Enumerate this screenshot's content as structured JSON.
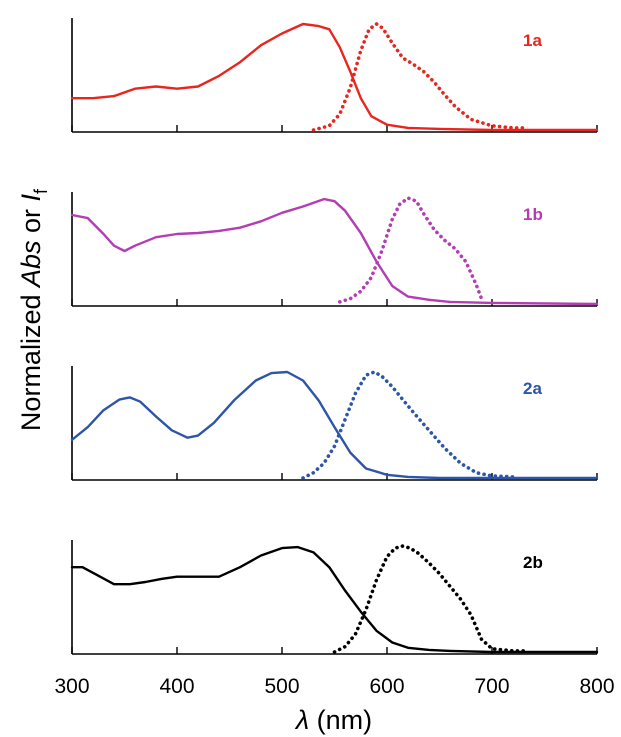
{
  "chart_data": {
    "type": "line",
    "xlabel": {
      "symbol": "λ",
      "unit": " (nm)"
    },
    "ylabel": {
      "prefix": "Normalized ",
      "abs": "Abs",
      "middle": " or ",
      "i": "I",
      "sub": "f"
    },
    "xlim": [
      300,
      800
    ],
    "xticks": [
      300,
      400,
      500,
      600,
      700,
      800
    ],
    "ylim": [
      0,
      1
    ],
    "grid": false,
    "panels": [
      {
        "label": "1a",
        "color": "#e8261f",
        "series": [
          {
            "kind": "absorption",
            "x": [
              300,
              320,
              340,
              360,
              380,
              400,
              420,
              440,
              460,
              480,
              500,
              520,
              535,
              545,
              555,
              565,
              575,
              585,
              600,
              620,
              650,
              700,
              800
            ],
            "y": [
              0.3,
              0.3,
              0.32,
              0.39,
              0.41,
              0.39,
              0.41,
              0.51,
              0.64,
              0.8,
              0.91,
              1.0,
              0.98,
              0.95,
              0.78,
              0.55,
              0.3,
              0.13,
              0.05,
              0.02,
              0.01,
              0.0,
              0.0
            ]
          },
          {
            "kind": "emission",
            "x": [
              530,
              545,
              555,
              565,
              575,
              583,
              590,
              596,
              605,
              615,
              625,
              635,
              645,
              655,
              665,
              680,
              700,
              720,
              730
            ],
            "y": [
              0.0,
              0.04,
              0.15,
              0.4,
              0.75,
              0.95,
              1.0,
              0.96,
              0.82,
              0.68,
              0.62,
              0.55,
              0.45,
              0.33,
              0.22,
              0.1,
              0.04,
              0.02,
              0.02
            ]
          }
        ]
      },
      {
        "label": "1b",
        "color": "#b43cb4",
        "series": [
          {
            "kind": "absorption",
            "x": [
              300,
              315,
              330,
              340,
              350,
              360,
              380,
              400,
              420,
              440,
              460,
              480,
              500,
              520,
              540,
              550,
              560,
              575,
              590,
              605,
              620,
              640,
              660,
              700,
              800
            ],
            "y": [
              0.84,
              0.81,
              0.66,
              0.55,
              0.5,
              0.55,
              0.63,
              0.66,
              0.67,
              0.69,
              0.72,
              0.78,
              0.86,
              0.92,
              0.99,
              0.97,
              0.88,
              0.67,
              0.4,
              0.17,
              0.07,
              0.04,
              0.02,
              0.01,
              0.0
            ]
          },
          {
            "kind": "emission",
            "x": [
              555,
              565,
              575,
              585,
              595,
              605,
              612,
              620,
              628,
              635,
              645,
              655,
              665,
              675,
              685,
              690
            ],
            "y": [
              0.02,
              0.05,
              0.12,
              0.25,
              0.5,
              0.8,
              0.94,
              1.0,
              0.97,
              0.85,
              0.7,
              0.6,
              0.52,
              0.4,
              0.18,
              0.05
            ]
          }
        ]
      },
      {
        "label": "2a",
        "color": "#2d55a8",
        "series": [
          {
            "kind": "absorption",
            "x": [
              300,
              315,
              330,
              345,
              355,
              365,
              380,
              395,
              410,
              420,
              435,
              455,
              475,
              490,
              505,
              520,
              535,
              550,
              565,
              580,
              600,
              620,
              650,
              700,
              800
            ],
            "y": [
              0.36,
              0.48,
              0.64,
              0.74,
              0.76,
              0.72,
              0.58,
              0.45,
              0.38,
              0.4,
              0.52,
              0.74,
              0.92,
              0.99,
              1.0,
              0.92,
              0.73,
              0.48,
              0.24,
              0.09,
              0.03,
              0.01,
              0.0,
              0.0,
              0.0
            ]
          },
          {
            "kind": "emission",
            "x": [
              520,
              530,
              540,
              550,
              560,
              570,
              580,
              588,
              595,
              605,
              615,
              625,
              640,
              655,
              670,
              685,
              700,
              720
            ],
            "y": [
              0.0,
              0.05,
              0.14,
              0.3,
              0.55,
              0.8,
              0.97,
              1.0,
              0.96,
              0.86,
              0.74,
              0.62,
              0.45,
              0.28,
              0.14,
              0.05,
              0.02,
              0.01
            ]
          }
        ]
      },
      {
        "label": "2b",
        "color": "#000000",
        "series": [
          {
            "kind": "absorption",
            "x": [
              300,
              310,
              325,
              340,
              355,
              370,
              385,
              400,
              420,
              440,
              460,
              480,
              500,
              515,
              530,
              545,
              560,
              575,
              590,
              605,
              620,
              640,
              660,
              700,
              800
            ],
            "y": [
              0.8,
              0.8,
              0.72,
              0.64,
              0.64,
              0.66,
              0.69,
              0.71,
              0.71,
              0.71,
              0.8,
              0.91,
              0.98,
              0.99,
              0.94,
              0.8,
              0.58,
              0.38,
              0.2,
              0.09,
              0.04,
              0.02,
              0.01,
              0.0,
              0.0
            ]
          },
          {
            "kind": "emission",
            "x": [
              550,
              560,
              570,
              580,
              590,
              600,
              608,
              615,
              622,
              630,
              640,
              650,
              660,
              670,
              680,
              690,
              700,
              720,
              730
            ],
            "y": [
              0.0,
              0.05,
              0.17,
              0.4,
              0.68,
              0.9,
              0.98,
              1.0,
              0.98,
              0.93,
              0.84,
              0.74,
              0.62,
              0.5,
              0.35,
              0.12,
              0.03,
              0.01,
              0.01
            ]
          }
        ]
      }
    ]
  }
}
